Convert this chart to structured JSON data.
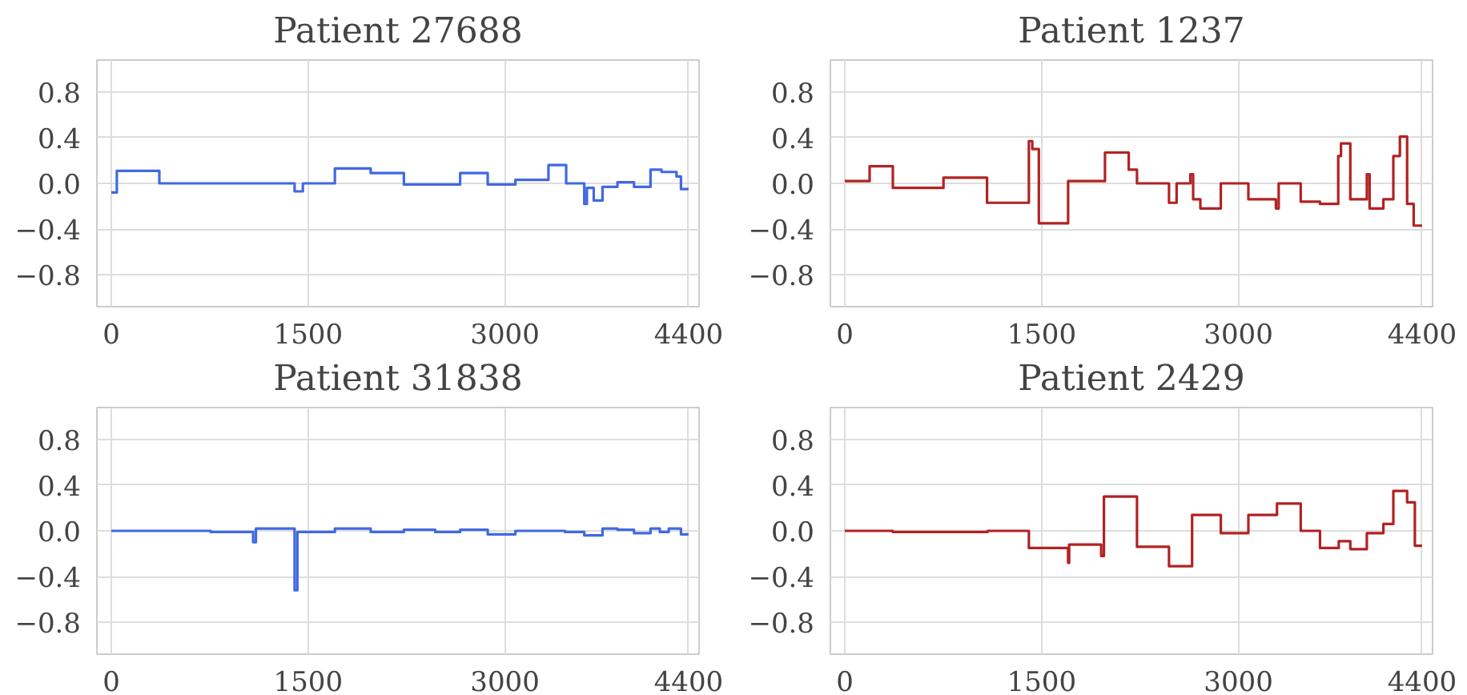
{
  "chart_data": [
    {
      "type": "step",
      "title": "Patient 27688",
      "color": "#4169e1",
      "grid": true,
      "xlim": [
        -110,
        4480
      ],
      "ylim": [
        -1.08,
        1.08
      ],
      "xticks": [
        0,
        1500,
        3000,
        4400
      ],
      "yticks": [
        {
          "value": -0.8,
          "label": "−0.8"
        },
        {
          "value": -0.4,
          "label": "−0.4"
        },
        {
          "value": 0,
          "label": "0.0"
        },
        {
          "value": 0.4,
          "label": "0.4"
        },
        {
          "value": 0.8,
          "label": "0.8"
        }
      ],
      "x": [
        0,
        42,
        366,
        1397,
        1460,
        1704,
        1977,
        2230,
        2659,
        2869,
        3080,
        3332,
        3467,
        3605,
        3625,
        3677,
        3744,
        3858,
        3984,
        4110,
        4194,
        4308,
        4342,
        4400
      ],
      "values": [
        -0.08,
        0.11,
        0.0,
        -0.07,
        0.0,
        0.13,
        0.09,
        -0.01,
        0.09,
        -0.01,
        0.03,
        0.16,
        0.0,
        -0.18,
        -0.04,
        -0.15,
        -0.03,
        0.01,
        -0.03,
        0.12,
        0.1,
        0.06,
        -0.05,
        -0.05
      ]
    },
    {
      "type": "step",
      "title": "Patient 1237",
      "color": "#b22222",
      "grid": true,
      "xlim": [
        -110,
        4480
      ],
      "ylim": [
        -1.08,
        1.08
      ],
      "xticks": [
        0,
        1500,
        3000,
        4400
      ],
      "yticks": [
        {
          "value": -0.8,
          "label": "−0.8"
        },
        {
          "value": -0.4,
          "label": "−0.4"
        },
        {
          "value": 0,
          "label": "0.0"
        },
        {
          "value": 0.4,
          "label": "0.4"
        },
        {
          "value": 0.8,
          "label": "0.8"
        }
      ],
      "x": [
        0,
        189,
        366,
        752,
        1084,
        1403,
        1429,
        1479,
        1702,
        1983,
        2164,
        2227,
        2471,
        2529,
        2634,
        2655,
        2710,
        2866,
        3076,
        3286,
        3307,
        3475,
        3622,
        3761,
        3782,
        3853,
        3979,
        4000,
        4105,
        4181,
        4231,
        4286,
        4336,
        4400
      ],
      "values": [
        0.02,
        0.15,
        -0.04,
        0.05,
        -0.17,
        0.37,
        0.3,
        -0.35,
        0.02,
        0.27,
        0.12,
        0.0,
        -0.17,
        0.0,
        0.08,
        -0.14,
        -0.22,
        0.0,
        -0.14,
        -0.22,
        0.0,
        -0.16,
        -0.18,
        0.24,
        0.35,
        -0.14,
        0.08,
        -0.22,
        -0.14,
        0.24,
        0.41,
        -0.18,
        -0.37,
        -0.37
      ]
    },
    {
      "type": "step",
      "title": "Patient 31838",
      "color": "#4169e1",
      "grid": true,
      "xlim": [
        -110,
        4480
      ],
      "ylim": [
        -1.08,
        1.08
      ],
      "xticks": [
        0,
        1500,
        3000,
        4400
      ],
      "yticks": [
        {
          "value": -0.8,
          "label": "−0.8"
        },
        {
          "value": -0.4,
          "label": "−0.4"
        },
        {
          "value": 0,
          "label": "0.0"
        },
        {
          "value": 0.4,
          "label": "0.4"
        },
        {
          "value": 0.8,
          "label": "0.8"
        }
      ],
      "x": [
        0,
        757,
        1081,
        1102,
        1397,
        1418,
        1704,
        1977,
        2230,
        2469,
        2659,
        2869,
        3080,
        3458,
        3605,
        3744,
        3858,
        3984,
        4110,
        4181,
        4249,
        4342,
        4400
      ],
      "values": [
        0.0,
        -0.01,
        -0.1,
        0.02,
        -0.52,
        -0.01,
        0.02,
        -0.01,
        0.01,
        -0.01,
        0.01,
        -0.03,
        0.0,
        -0.01,
        -0.04,
        0.02,
        0.01,
        -0.02,
        0.02,
        -0.01,
        0.02,
        -0.03,
        -0.03
      ]
    },
    {
      "type": "step",
      "title": "Patient 2429",
      "color": "#b22222",
      "grid": true,
      "xlim": [
        -110,
        4480
      ],
      "ylim": [
        -1.08,
        1.08
      ],
      "xticks": [
        0,
        1500,
        3000,
        4400
      ],
      "yticks": [
        {
          "value": -0.8,
          "label": "−0.8"
        },
        {
          "value": -0.4,
          "label": "−0.4"
        },
        {
          "value": 0,
          "label": "0.0"
        },
        {
          "value": 0.4,
          "label": "0.4"
        },
        {
          "value": 0.8,
          "label": "0.8"
        }
      ],
      "x": [
        0,
        366,
        1088,
        1403,
        1702,
        1710,
        1954,
        1975,
        2227,
        2471,
        2647,
        2866,
        3076,
        3294,
        3475,
        3622,
        3765,
        3853,
        3979,
        4105,
        4181,
        4286,
        4345,
        4400
      ],
      "values": [
        0.0,
        -0.01,
        0.0,
        -0.15,
        -0.28,
        -0.12,
        -0.22,
        0.3,
        -0.14,
        -0.31,
        0.14,
        -0.02,
        0.14,
        0.24,
        0.0,
        -0.15,
        -0.09,
        -0.16,
        -0.02,
        0.06,
        0.35,
        0.25,
        -0.13,
        -0.13
      ]
    }
  ]
}
